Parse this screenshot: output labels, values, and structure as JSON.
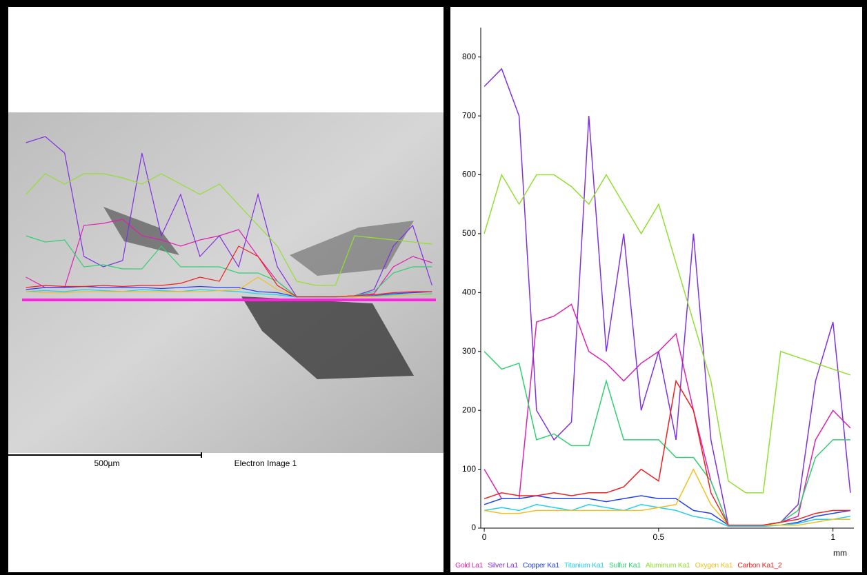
{
  "image_panel": {
    "scale_bar_label": "500µm",
    "caption": "Electron Image 1"
  },
  "chart_data": {
    "type": "line",
    "x_unit": "mm",
    "x": [
      0,
      0.05,
      0.1,
      0.15,
      0.2,
      0.25,
      0.3,
      0.35,
      0.4,
      0.45,
      0.5,
      0.55,
      0.6,
      0.65,
      0.7,
      0.75,
      0.8,
      0.85,
      0.9,
      0.95,
      1.0,
      1.05
    ],
    "xlim": [
      -0.01,
      1.06
    ],
    "ylim": [
      0,
      850
    ],
    "xticks": [
      0,
      0.5,
      1
    ],
    "yticks": [
      0,
      100,
      200,
      300,
      400,
      500,
      600,
      700,
      800
    ],
    "series": [
      {
        "name": "Gold La1",
        "color": "#e020b0",
        "values": [
          100,
          50,
          50,
          350,
          360,
          380,
          300,
          280,
          250,
          280,
          300,
          330,
          200,
          80,
          5,
          5,
          5,
          10,
          20,
          150,
          200,
          170
        ]
      },
      {
        "name": "Silver La1",
        "color": "#8030e0",
        "values": [
          750,
          780,
          700,
          200,
          150,
          180,
          700,
          300,
          500,
          200,
          300,
          150,
          500,
          150,
          5,
          5,
          5,
          10,
          40,
          250,
          350,
          60
        ]
      },
      {
        "name": "Copper Ka1",
        "color": "#2040f0",
        "values": [
          40,
          50,
          50,
          55,
          50,
          50,
          50,
          45,
          50,
          55,
          50,
          50,
          30,
          25,
          5,
          5,
          5,
          5,
          10,
          20,
          25,
          30
        ]
      },
      {
        "name": "Titanium Ka1",
        "color": "#20d0f0",
        "values": [
          30,
          35,
          30,
          40,
          35,
          30,
          40,
          35,
          30,
          40,
          35,
          30,
          20,
          15,
          3,
          3,
          3,
          5,
          8,
          15,
          15,
          20
        ]
      },
      {
        "name": "Sulfur Ka1",
        "color": "#30d070",
        "values": [
          300,
          270,
          280,
          150,
          160,
          140,
          140,
          250,
          150,
          150,
          150,
          120,
          120,
          80,
          5,
          5,
          5,
          10,
          30,
          120,
          150,
          150
        ]
      },
      {
        "name": "Aluminum Ka1",
        "color": "#90e030",
        "values": [
          500,
          600,
          550,
          600,
          600,
          580,
          550,
          600,
          550,
          500,
          550,
          450,
          350,
          250,
          80,
          60,
          60,
          300,
          290,
          280,
          270,
          260
        ]
      },
      {
        "name": "Oxygen Ka1",
        "color": "#f0c020",
        "values": [
          30,
          25,
          25,
          30,
          30,
          30,
          30,
          30,
          30,
          30,
          35,
          40,
          100,
          40,
          5,
          5,
          5,
          5,
          5,
          10,
          15,
          15
        ]
      },
      {
        "name": "Carbon Ka1_2",
        "color": "#f02020",
        "values": [
          50,
          60,
          55,
          55,
          60,
          55,
          60,
          60,
          70,
          100,
          80,
          250,
          200,
          60,
          5,
          5,
          5,
          10,
          15,
          25,
          30,
          30
        ]
      }
    ]
  }
}
